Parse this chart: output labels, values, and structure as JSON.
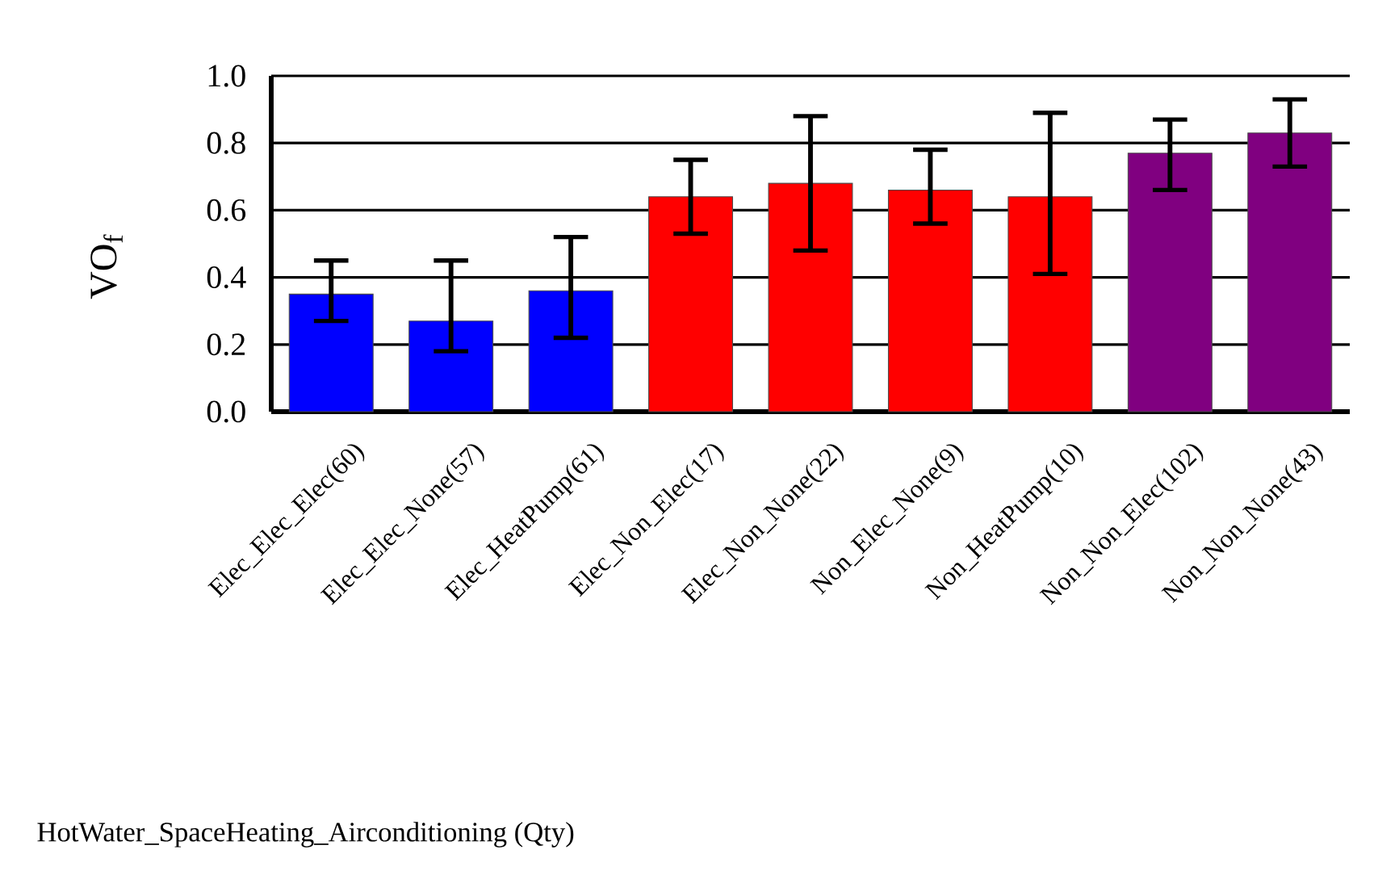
{
  "chart_data": {
    "type": "bar",
    "annotations": [
      "HotWater_SpaceHeating_Airconditioning (Qty)"
    ],
    "ylabel": "VO$_{f}$",
    "categories": [
      "Elec_Elec_Elec(60)",
      "Elec_Elec_None(57)",
      "Elec_HeatPump(61)",
      "Elec_Non_Elec(17)",
      "Elec_Non_None(22)",
      "Non_Elec_None(9)",
      "Non_HeatPump(10)",
      "Non_Non_Elec(102)",
      "Non_Non_None(43)"
    ],
    "values": [
      0.35,
      0.27,
      0.36,
      0.64,
      0.68,
      0.66,
      0.64,
      0.77,
      0.83
    ],
    "colors": [
      "#0000ff",
      "#0000ff",
      "#0000ff",
      "#ff0000",
      "#ff0000",
      "#ff0000",
      "#ff0000",
      "#800080",
      "#800080"
    ],
    "errors": [
      [
        0.27,
        0.45
      ],
      [
        0.18,
        0.45
      ],
      [
        0.22,
        0.52
      ],
      [
        0.53,
        0.75
      ],
      [
        0.48,
        0.88
      ],
      [
        0.56,
        0.78
      ],
      [
        0.41,
        0.89
      ],
      [
        0.66,
        0.87
      ],
      [
        0.73,
        0.93
      ]
    ],
    "ylim": [
      0,
      1.0
    ],
    "yticks": [
      {
        "value": 0,
        "label": "0.0"
      },
      0.2,
      0.4,
      0.6,
      0.8,
      {
        "value": 1.0,
        "label": "1.0"
      }
    ],
    "grid": "y"
  }
}
